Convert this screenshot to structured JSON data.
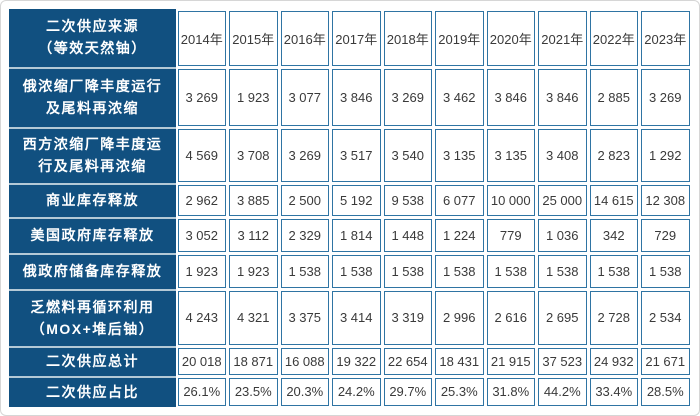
{
  "colors": {
    "header_bg": "#115080",
    "cell_border": "#2F74A3",
    "label_separator": "#B4C9D6",
    "cell_text": "#3A3A3A",
    "label_text": "#FFFFFF"
  },
  "table": {
    "header": {
      "label": "二次供应来源\n（等效天然铀）",
      "years": [
        "2014年",
        "2015年",
        "2016年",
        "2017年",
        "2018年",
        "2019年",
        "2020年",
        "2021年",
        "2022年",
        "2023年"
      ]
    },
    "rows": [
      {
        "label": "俄浓缩厂降丰度运行\n及尾料再浓缩",
        "values": [
          "3 269",
          "1 923",
          "3 077",
          "3 846",
          "3 269",
          "3 462",
          "3 846",
          "3 846",
          "2 885",
          "3 269"
        ]
      },
      {
        "label": "西方浓缩厂降丰度运\n行及尾料再浓缩",
        "values": [
          "4 569",
          "3 708",
          "3 269",
          "3 517",
          "3 540",
          "3 135",
          "3 135",
          "3 408",
          "2 823",
          "1 292"
        ]
      },
      {
        "label": "商业库存释放",
        "values": [
          "2 962",
          "3 885",
          "2 500",
          "5 192",
          "9 538",
          "6 077",
          "10 000",
          "25 000",
          "14 615",
          "12 308"
        ]
      },
      {
        "label": "美国政府库存释放",
        "values": [
          "3 052",
          "3 112",
          "2 329",
          "1 814",
          "1 448",
          "1 224",
          "779",
          "1 036",
          "342",
          "729"
        ]
      },
      {
        "label": "俄政府储备库存释放",
        "values": [
          "1 923",
          "1 923",
          "1 538",
          "1 538",
          "1 538",
          "1 538",
          "1 538",
          "1 538",
          "1 538",
          "1 538"
        ]
      },
      {
        "label": "乏燃料再循环利用\n（MOX+堆后铀）",
        "values": [
          "4 243",
          "4 321",
          "3 375",
          "3 414",
          "3 319",
          "2 996",
          "2 616",
          "2 695",
          "2 728",
          "2 534"
        ]
      },
      {
        "label": "二次供应总计",
        "values": [
          "20 018",
          "18 871",
          "16 088",
          "19 322",
          "22 654",
          "18 431",
          "21 915",
          "37 523",
          "24 932",
          "21 671"
        ]
      },
      {
        "label": "二次供应占比",
        "values": [
          "26.1%",
          "23.5%",
          "20.3%",
          "24.2%",
          "29.7%",
          "25.3%",
          "31.8%",
          "44.2%",
          "33.4%",
          "28.5%"
        ]
      }
    ]
  },
  "chart_data": {
    "type": "table",
    "title": "二次供应来源（等效天然铀）",
    "columns": [
      "2014年",
      "2015年",
      "2016年",
      "2017年",
      "2018年",
      "2019年",
      "2020年",
      "2021年",
      "2022年",
      "2023年"
    ],
    "rows": [
      {
        "label": "俄浓缩厂降丰度运行及尾料再浓缩",
        "values": [
          3269,
          1923,
          3077,
          3846,
          3269,
          3462,
          3846,
          3846,
          2885,
          3269
        ]
      },
      {
        "label": "西方浓缩厂降丰度运行及尾料再浓缩",
        "values": [
          4569,
          3708,
          3269,
          3517,
          3540,
          3135,
          3135,
          3408,
          2823,
          1292
        ]
      },
      {
        "label": "商业库存释放",
        "values": [
          2962,
          3885,
          2500,
          5192,
          9538,
          6077,
          10000,
          25000,
          14615,
          12308
        ]
      },
      {
        "label": "美国政府库存释放",
        "values": [
          3052,
          3112,
          2329,
          1814,
          1448,
          1224,
          779,
          1036,
          342,
          729
        ]
      },
      {
        "label": "俄政府储备库存释放",
        "values": [
          1923,
          1923,
          1538,
          1538,
          1538,
          1538,
          1538,
          1538,
          1538,
          1538
        ]
      },
      {
        "label": "乏燃料再循环利用（MOX+堆后铀）",
        "values": [
          4243,
          4321,
          3375,
          3414,
          3319,
          2996,
          2616,
          2695,
          2728,
          2534
        ]
      },
      {
        "label": "二次供应总计",
        "values": [
          20018,
          18871,
          16088,
          19322,
          22654,
          18431,
          21915,
          37523,
          24932,
          21671
        ]
      },
      {
        "label": "二次供应占比",
        "values": [
          "26.1%",
          "23.5%",
          "20.3%",
          "24.2%",
          "29.7%",
          "25.3%",
          "31.8%",
          "44.2%",
          "33.4%",
          "28.5%"
        ]
      }
    ]
  }
}
